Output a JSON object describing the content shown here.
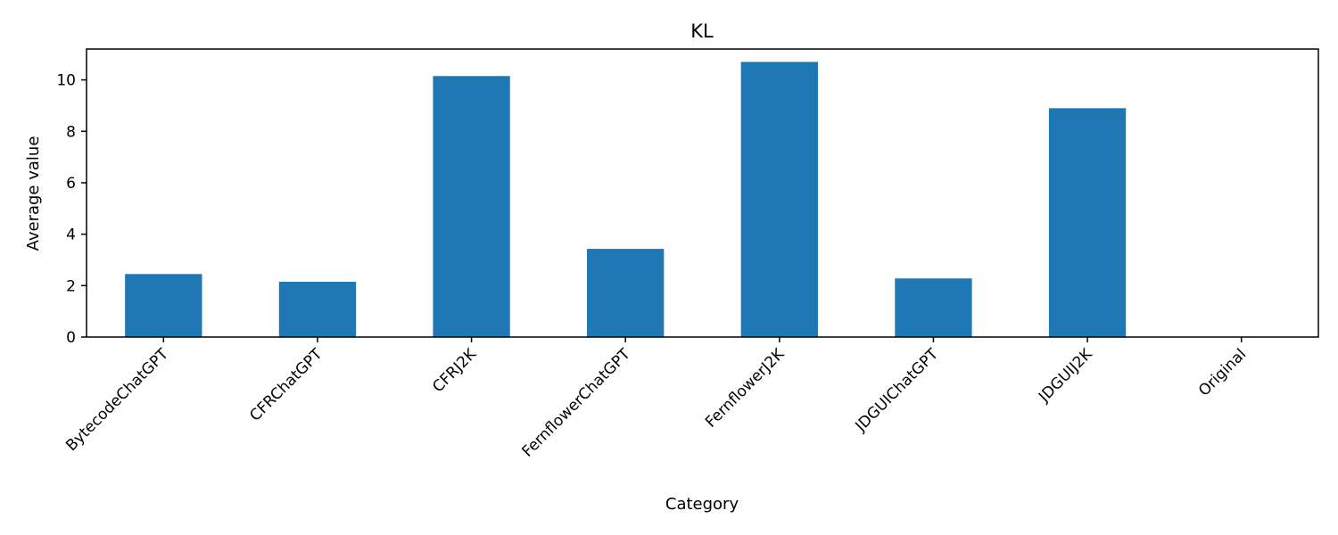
{
  "chart_data": {
    "type": "bar",
    "title": "KL",
    "xlabel": "Category",
    "ylabel": "Average value",
    "categories": [
      "BytecodeChatGPT",
      "CFRChatGPT",
      "CFRJ2K",
      "FernflowerChatGPT",
      "FernflowerJ2K",
      "JDGUIChatGPT",
      "JDGUIJ2K",
      "Original"
    ],
    "values": [
      2.45,
      2.15,
      10.15,
      3.43,
      10.7,
      2.28,
      8.9,
      0.0
    ],
    "ylim": [
      0,
      11.2
    ],
    "yticks": [
      0,
      2,
      4,
      6,
      8,
      10
    ],
    "grid": false,
    "legend": "none",
    "bar_color": "#1f77b4"
  }
}
